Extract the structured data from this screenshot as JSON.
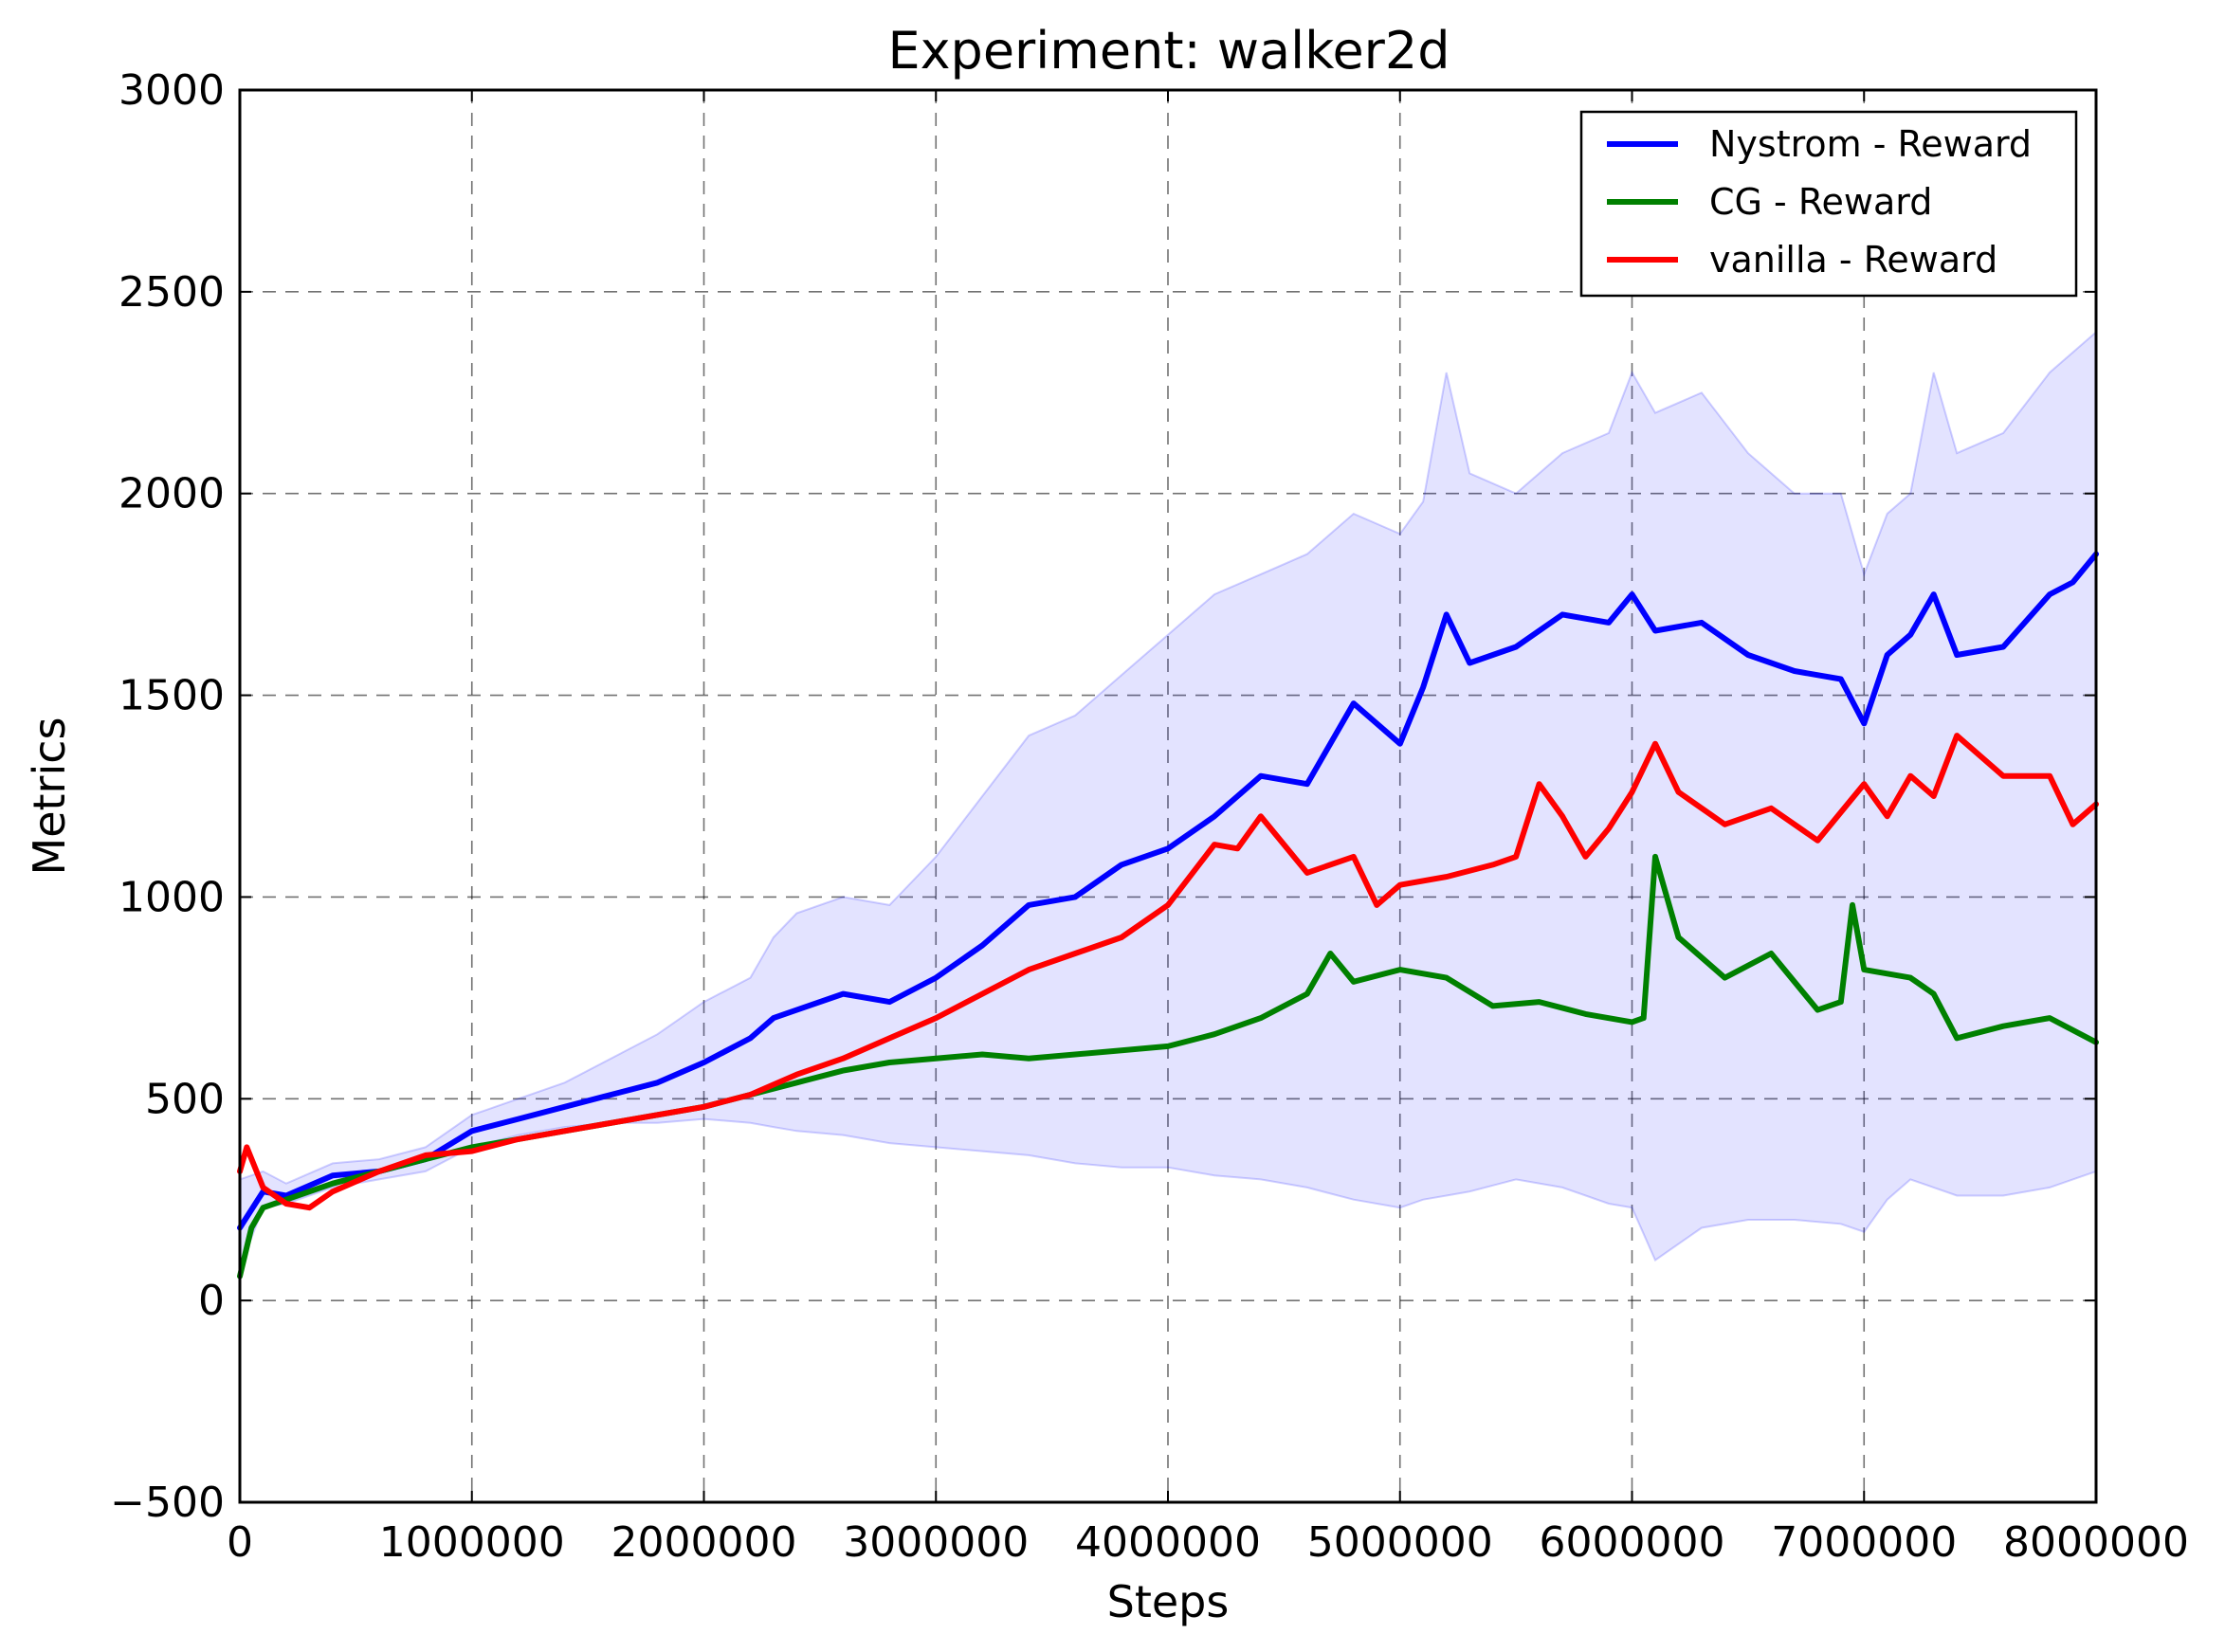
{
  "chart_data": {
    "type": "line",
    "title": "Experiment: walker2d",
    "xlabel": "Steps",
    "ylabel": "Metrics",
    "xlim": [
      0,
      8000000
    ],
    "ylim": [
      -500,
      3000
    ],
    "x_ticks": [
      0,
      1000000,
      2000000,
      3000000,
      4000000,
      5000000,
      6000000,
      7000000,
      8000000
    ],
    "x_tick_labels": [
      "0",
      "1000000",
      "2000000",
      "3000000",
      "4000000",
      "5000000",
      "6000000",
      "7000000",
      "8000000"
    ],
    "y_ticks": [
      -500,
      0,
      500,
      1000,
      1500,
      2000,
      2500,
      3000
    ],
    "y_tick_labels": [
      "−500",
      "0",
      "500",
      "1000",
      "1500",
      "2000",
      "2500",
      "3000"
    ],
    "grid": true,
    "legend_position": "top-right",
    "band_color": "#0000ff",
    "series": [
      {
        "name": "Nystrom - Reward",
        "color": "#0000ff",
        "x": [
          0,
          100000,
          200000,
          400000,
          600000,
          800000,
          1000000,
          1200000,
          1400000,
          1600000,
          1800000,
          2000000,
          2200000,
          2300000,
          2400000,
          2600000,
          2800000,
          3000000,
          3200000,
          3400000,
          3600000,
          3800000,
          4000000,
          4200000,
          4400000,
          4600000,
          4800000,
          5000000,
          5100000,
          5200000,
          5300000,
          5500000,
          5700000,
          5900000,
          6000000,
          6100000,
          6300000,
          6500000,
          6700000,
          6900000,
          7000000,
          7100000,
          7200000,
          7300000,
          7400000,
          7600000,
          7800000,
          7900000,
          8000000
        ],
        "values": [
          180,
          270,
          260,
          310,
          320,
          350,
          420,
          450,
          480,
          510,
          540,
          590,
          650,
          700,
          720,
          760,
          740,
          800,
          880,
          980,
          1000,
          1080,
          1120,
          1200,
          1300,
          1280,
          1480,
          1380,
          1520,
          1700,
          1580,
          1620,
          1700,
          1680,
          1750,
          1660,
          1680,
          1600,
          1560,
          1540,
          1430,
          1600,
          1650,
          1750,
          1600,
          1620,
          1750,
          1780,
          1850
        ],
        "band_low": [
          80,
          230,
          240,
          280,
          300,
          320,
          380,
          410,
          430,
          440,
          440,
          450,
          440,
          430,
          420,
          410,
          390,
          380,
          370,
          360,
          340,
          330,
          330,
          310,
          300,
          280,
          250,
          230,
          250,
          260,
          270,
          300,
          280,
          240,
          230,
          100,
          180,
          200,
          200,
          190,
          170,
          250,
          300,
          280,
          260,
          260,
          280,
          300,
          320
        ],
        "band_high": [
          300,
          320,
          290,
          340,
          350,
          380,
          460,
          500,
          540,
          600,
          660,
          740,
          800,
          900,
          960,
          1000,
          980,
          1100,
          1250,
          1400,
          1450,
          1550,
          1650,
          1750,
          1800,
          1850,
          1950,
          1900,
          1980,
          2300,
          2050,
          2000,
          2100,
          2150,
          2300,
          2200,
          2250,
          2100,
          2000,
          2000,
          1800,
          1950,
          2000,
          2300,
          2100,
          2150,
          2300,
          2350,
          2400
        ]
      },
      {
        "name": "CG - Reward",
        "color": "#008000",
        "x": [
          0,
          50000,
          100000,
          200000,
          400000,
          600000,
          800000,
          1000000,
          1200000,
          1400000,
          1600000,
          1800000,
          2000000,
          2200000,
          2400000,
          2600000,
          2800000,
          3000000,
          3200000,
          3400000,
          3600000,
          3800000,
          4000000,
          4200000,
          4400000,
          4600000,
          4700000,
          4800000,
          5000000,
          5200000,
          5400000,
          5600000,
          5800000,
          6000000,
          6050000,
          6100000,
          6200000,
          6400000,
          6600000,
          6800000,
          6900000,
          6950000,
          7000000,
          7200000,
          7300000,
          7400000,
          7600000,
          7800000,
          8000000
        ],
        "values": [
          60,
          180,
          230,
          250,
          290,
          320,
          350,
          380,
          400,
          420,
          440,
          460,
          480,
          510,
          540,
          570,
          590,
          600,
          610,
          600,
          610,
          620,
          630,
          660,
          700,
          760,
          860,
          790,
          820,
          800,
          730,
          740,
          710,
          690,
          700,
          1100,
          900,
          800,
          860,
          720,
          740,
          980,
          820,
          800,
          760,
          650,
          680,
          700,
          640
        ]
      },
      {
        "name": "vanilla - Reward",
        "color": "#ff0000",
        "x": [
          0,
          30000,
          100000,
          200000,
          300000,
          400000,
          600000,
          800000,
          1000000,
          1200000,
          1400000,
          1600000,
          1800000,
          2000000,
          2200000,
          2400000,
          2600000,
          2800000,
          3000000,
          3200000,
          3400000,
          3600000,
          3800000,
          4000000,
          4200000,
          4300000,
          4400000,
          4600000,
          4800000,
          4900000,
          5000000,
          5200000,
          5400000,
          5500000,
          5600000,
          5700000,
          5800000,
          5900000,
          6000000,
          6100000,
          6200000,
          6400000,
          6600000,
          6800000,
          7000000,
          7100000,
          7200000,
          7300000,
          7400000,
          7600000,
          7800000,
          7900000,
          8000000
        ],
        "values": [
          320,
          380,
          280,
          240,
          230,
          270,
          320,
          360,
          370,
          400,
          420,
          440,
          460,
          480,
          510,
          560,
          600,
          650,
          700,
          760,
          820,
          860,
          900,
          980,
          1130,
          1120,
          1200,
          1060,
          1100,
          980,
          1030,
          1050,
          1080,
          1100,
          1280,
          1200,
          1100,
          1170,
          1260,
          1380,
          1260,
          1180,
          1220,
          1140,
          1280,
          1200,
          1300,
          1250,
          1400,
          1300,
          1300,
          1180,
          1230
        ]
      }
    ]
  }
}
